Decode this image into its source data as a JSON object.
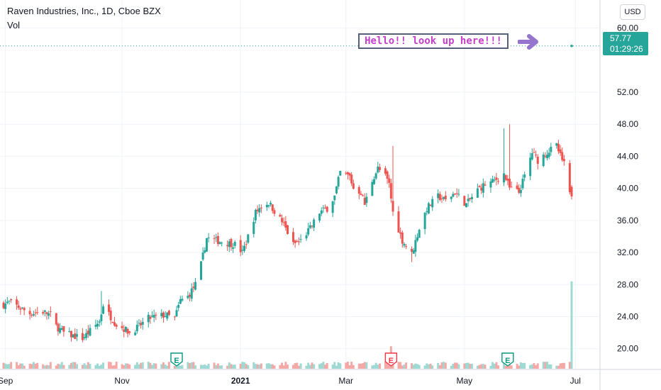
{
  "header": {
    "title": "Raven Industries, Inc., 1D, Cboe BZX",
    "subtitle": "Vol"
  },
  "currency_button": "USD",
  "last_price": {
    "value": "57.77",
    "countdown": "01:29:26"
  },
  "annotation": {
    "text": "Hello!! look up here!!!",
    "color": "#c43fc9"
  },
  "colors": {
    "up": "#26a69a",
    "down": "#ef5350",
    "up_vol": "#9fd9d3",
    "down_vol": "#f5a9a7",
    "earnings_green": "#089981",
    "earnings_red": "#f23645",
    "arrow": "#9575cd"
  },
  "earnings_markers": [
    {
      "label": "E",
      "date": "2020-12-01",
      "color": "green"
    },
    {
      "label": "E",
      "date": "2021-03-25",
      "color": "red"
    },
    {
      "label": "E",
      "date": "2021-05-26",
      "color": "green"
    }
  ],
  "chart_data": {
    "type": "candlestick",
    "title": "Raven Industries, Inc., 1D, Cboe BZX",
    "ylim": [
      17.5,
      63.5
    ],
    "y_ticks": [
      "20.00",
      "24.00",
      "28.00",
      "32.00",
      "36.00",
      "40.00",
      "44.00",
      "48.00",
      "52.00",
      "60.00"
    ],
    "x_ticks": [
      "Sep",
      "Nov",
      "2021",
      "Mar",
      "May",
      "Jul"
    ],
    "x_tick_dates": [
      "2020-09-01",
      "2020-11-02",
      "2021-01-04",
      "2021-03-01",
      "2021-05-03",
      "2021-07-01"
    ],
    "date_range": [
      "2020-08-31",
      "2021-06-29"
    ],
    "last_price_line": 57.77,
    "close_path": [
      [
        "2020-08-31",
        25.5
      ],
      [
        "2020-09-03",
        25.8
      ],
      [
        "2020-09-08",
        25.2
      ],
      [
        "2020-09-14",
        24.4
      ],
      [
        "2020-09-21",
        24.6
      ],
      [
        "2020-09-25",
        24.2
      ],
      [
        "2020-09-28",
        22.8
      ],
      [
        "2020-10-02",
        22.0
      ],
      [
        "2020-10-07",
        21.6
      ],
      [
        "2020-10-12",
        21.3
      ],
      [
        "2020-10-16",
        22.2
      ],
      [
        "2020-10-21",
        23.4
      ],
      [
        "2020-10-23",
        25.5
      ],
      [
        "2020-10-26",
        24.3
      ],
      [
        "2020-10-30",
        23.0
      ],
      [
        "2020-11-03",
        22.5
      ],
      [
        "2020-11-06",
        22.0
      ],
      [
        "2020-11-10",
        22.6
      ],
      [
        "2020-11-16",
        23.8
      ],
      [
        "2020-11-20",
        24.0
      ],
      [
        "2020-11-25",
        24.2
      ],
      [
        "2020-11-30",
        23.8
      ],
      [
        "2020-12-03",
        26.0
      ],
      [
        "2020-12-07",
        26.5
      ],
      [
        "2020-12-11",
        28.0
      ],
      [
        "2020-12-14",
        30.5
      ],
      [
        "2020-12-17",
        33.8
      ],
      [
        "2020-12-22",
        33.5
      ],
      [
        "2020-12-28",
        33.2
      ],
      [
        "2021-01-01",
        33.0
      ],
      [
        "2021-01-05",
        32.0
      ],
      [
        "2021-01-08",
        34.0
      ],
      [
        "2021-01-12",
        37.0
      ],
      [
        "2021-01-15",
        37.8
      ],
      [
        "2021-01-19",
        38.2
      ],
      [
        "2021-01-22",
        37.2
      ],
      [
        "2021-01-27",
        35.5
      ],
      [
        "2021-02-01",
        33.0
      ],
      [
        "2021-02-05",
        33.5
      ],
      [
        "2021-02-10",
        35.0
      ],
      [
        "2021-02-15",
        37.0
      ],
      [
        "2021-02-19",
        37.5
      ],
      [
        "2021-02-23",
        39.0
      ],
      [
        "2021-02-26",
        42.0
      ],
      [
        "2021-03-03",
        41.5
      ],
      [
        "2021-03-05",
        40.0
      ],
      [
        "2021-03-09",
        39.5
      ],
      [
        "2021-03-11",
        38.0
      ],
      [
        "2021-03-15",
        41.0
      ],
      [
        "2021-03-18",
        42.5
      ],
      [
        "2021-03-22",
        41.5
      ],
      [
        "2021-03-24",
        40.5
      ],
      [
        "2021-03-26",
        37.0
      ],
      [
        "2021-03-31",
        33.5
      ],
      [
        "2021-04-05",
        31.8
      ],
      [
        "2021-04-09",
        35.0
      ],
      [
        "2021-04-13",
        37.5
      ],
      [
        "2021-04-19",
        39.0
      ],
      [
        "2021-04-23",
        38.5
      ],
      [
        "2021-04-28",
        39.5
      ],
      [
        "2021-05-04",
        38.0
      ],
      [
        "2021-05-10",
        39.8
      ],
      [
        "2021-05-14",
        40.5
      ],
      [
        "2021-05-18",
        40.8
      ],
      [
        "2021-05-24",
        41.8
      ],
      [
        "2021-05-27",
        40.0
      ],
      [
        "2021-06-01",
        39.5
      ],
      [
        "2021-06-04",
        41.5
      ],
      [
        "2021-06-08",
        44.5
      ],
      [
        "2021-06-11",
        43.5
      ],
      [
        "2021-06-16",
        44.5
      ],
      [
        "2021-06-21",
        45.3
      ],
      [
        "2021-06-23",
        44.0
      ],
      [
        "2021-06-25",
        43.0
      ],
      [
        "2021-06-28",
        39.2
      ],
      [
        "2021-06-29",
        57.77
      ]
    ],
    "spikes": [
      [
        "2020-10-22",
        27.2,
        25.5
      ],
      [
        "2021-03-26",
        45.3,
        41.5
      ],
      [
        "2021-04-05",
        32.0,
        30.8
      ],
      [
        "2021-05-24",
        47.5,
        43.0
      ],
      [
        "2021-05-27",
        48.0,
        43.5
      ]
    ],
    "volume": {
      "relative_level": 0.05,
      "spike_date": "2021-06-29",
      "spike_value": 28.4,
      "earnings_bar_date": "2021-03-25",
      "earnings_bar_value": 20.3
    }
  }
}
